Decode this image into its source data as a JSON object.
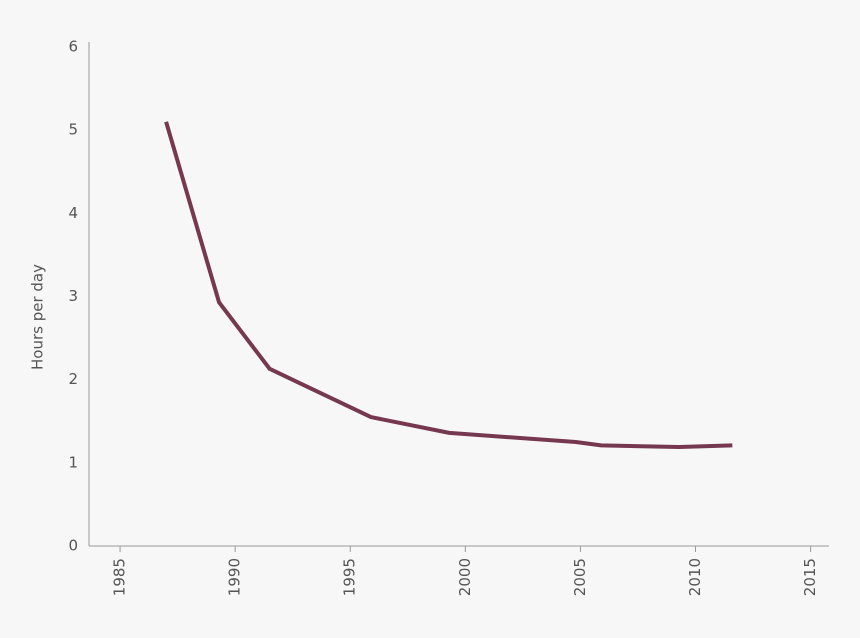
{
  "chart_data": {
    "type": "line",
    "y_label": "Hours per day",
    "x": [
      1987,
      1989.3,
      1991.5,
      1995.9,
      1999.3,
      2004.8,
      2005.9,
      2009.3,
      2011.6
    ],
    "series": [
      {
        "color": "#76384f",
        "values": [
          5.1,
          2.93,
          2.13,
          1.55,
          1.36,
          1.25,
          1.21,
          1.19,
          1.21
        ]
      }
    ],
    "xlim": [
      1983.65,
      2015.8
    ],
    "xticks": [
      1985,
      1990,
      1995,
      2000,
      2005,
      2010,
      2015
    ],
    "ylim": [
      0,
      6
    ],
    "yticks": [
      0,
      1,
      2,
      3,
      4,
      5,
      6
    ]
  }
}
